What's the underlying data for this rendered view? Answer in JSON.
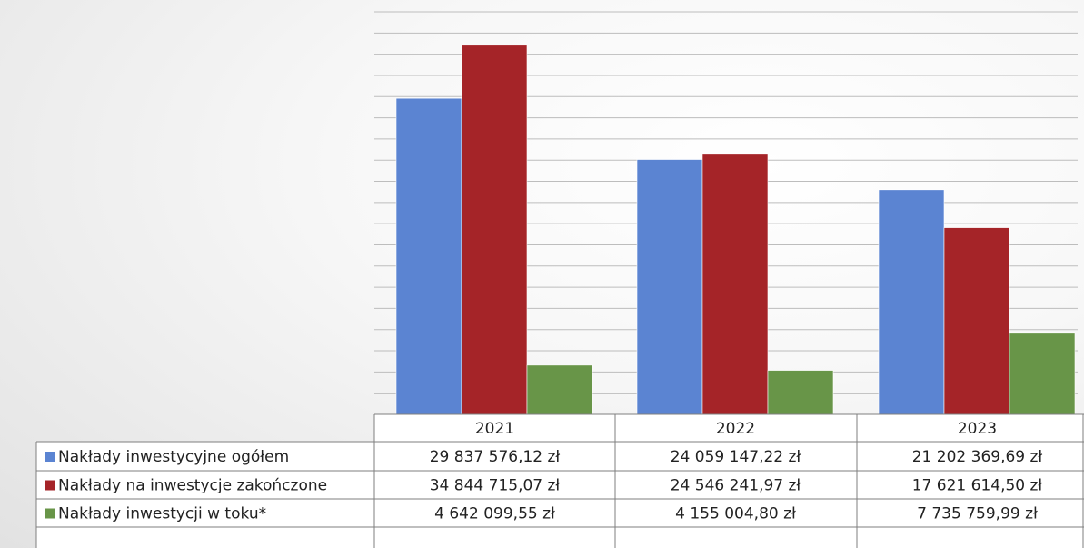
{
  "chart_data": {
    "type": "bar",
    "categories": [
      "2021",
      "2022",
      "2023"
    ],
    "series": [
      {
        "name": "Nakłady inwestycyjne ogółem",
        "color": "#5b84d2",
        "values": [
          29837576.12,
          24059147.22,
          21202369.69
        ],
        "labels": [
          "29 837 576,12 zł",
          "24 059 147,22 zł",
          "21 202 369,69 zł"
        ]
      },
      {
        "name": "Nakłady na inwestycje zakończone",
        "color": "#a52428",
        "values": [
          34844715.07,
          24546241.97,
          17621614.5
        ],
        "labels": [
          "34 844 715,07 zł",
          "24 546 241,97 zł",
          "17 621 614,50 zł"
        ]
      },
      {
        "name": "Nakłady inwestycji w toku*",
        "color": "#689548",
        "values": [
          4642099.55,
          4155004.8,
          7735759.99
        ],
        "labels": [
          "4 642 099,55 zł",
          "4 155 004,80 zł",
          "7 735 759,99 zł"
        ]
      }
    ],
    "ylim": [
      0,
      38000000
    ],
    "grid": true,
    "legend": "data-table"
  }
}
